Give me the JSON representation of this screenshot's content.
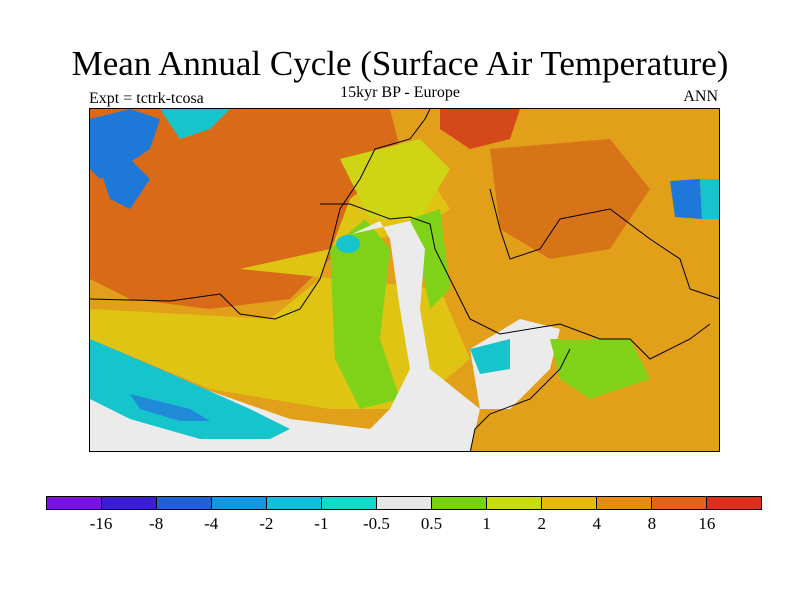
{
  "title": "Mean Annual Cycle (Surface Air Temperature)",
  "subtitle_left": "Expt = tctrk-tcosa",
  "subtitle_center": "15kyr BP - Europe",
  "subtitle_right": "ANN",
  "colorbar": {
    "colors": [
      "#7a12e0",
      "#3a1ed0",
      "#1e62d6",
      "#1496e0",
      "#12bedc",
      "#14d8c8",
      "#e6e6e6",
      "#78d214",
      "#c8dc14",
      "#e6b814",
      "#e68c14",
      "#e0641a",
      "#d8321a"
    ],
    "labels": [
      "-16",
      "-8",
      "-4",
      "-2",
      "-1",
      "-0.5",
      "0.5",
      "1",
      "2",
      "4",
      "8",
      "16"
    ]
  },
  "map_colors": {
    "warm_orange": "#e09020",
    "dark_orange": "#d86418",
    "red": "#d03a18",
    "yellow": "#e6c014",
    "yellow_green": "#c8d814",
    "green": "#7ad218",
    "white": "#ebebeb",
    "cyan": "#16c8cc",
    "blue": "#1e78d8"
  }
}
